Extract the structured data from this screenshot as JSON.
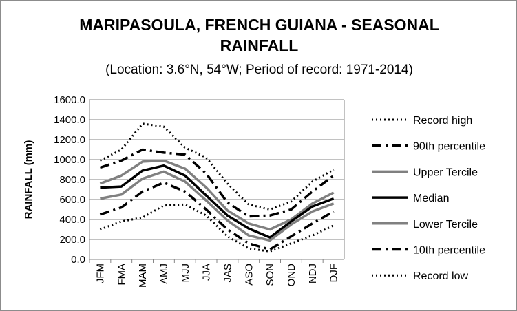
{
  "chart_data": {
    "type": "line",
    "title_line1": "MARIPASOULA, FRENCH GUIANA - SEASONAL",
    "title_line2": "RAINFALL",
    "subtitle": "(Location: 3.6°N, 54°W; Period of record: 1971-2014)",
    "xlabel": "",
    "ylabel": "RAINFALL (mm)",
    "ylim": [
      0,
      1600
    ],
    "yticks": [
      "0.0",
      "200.0",
      "400.0",
      "600.0",
      "800.0",
      "1000.0",
      "1200.0",
      "1400.0",
      "1600.0"
    ],
    "categories": [
      "JFM",
      "FMA",
      "MAM",
      "AMJ",
      "MJJ",
      "JJA",
      "JAS",
      "ASO",
      "SON",
      "OND",
      "NDJ",
      "DJF"
    ],
    "grid": true,
    "legend_position": "right",
    "series": [
      {
        "name": "Record high",
        "style": "dotted",
        "color": "#000000",
        "values": [
          990,
          1100,
          1360,
          1330,
          1120,
          1020,
          760,
          550,
          500,
          580,
          780,
          900
        ]
      },
      {
        "name": "90th percentile",
        "style": "dashdot",
        "color": "#000000",
        "values": [
          920,
          990,
          1100,
          1070,
          1050,
          860,
          570,
          430,
          440,
          500,
          680,
          840
        ]
      },
      {
        "name": "Upper Tercile",
        "style": "solid",
        "color": "#808080",
        "values": [
          760,
          840,
          980,
          990,
          910,
          720,
          490,
          360,
          300,
          400,
          560,
          670
        ]
      },
      {
        "name": "Median",
        "style": "solid",
        "color": "#000000",
        "values": [
          720,
          730,
          890,
          940,
          840,
          640,
          440,
          310,
          220,
          380,
          530,
          610
        ]
      },
      {
        "name": "Lower Tercile",
        "style": "solid",
        "color": "#808080",
        "values": [
          610,
          650,
          810,
          880,
          780,
          590,
          390,
          240,
          190,
          350,
          480,
          560
        ]
      },
      {
        "name": "10th percentile",
        "style": "dashdot",
        "color": "#000000",
        "values": [
          450,
          520,
          680,
          770,
          680,
          500,
          300,
          160,
          100,
          230,
          360,
          480
        ]
      },
      {
        "name": "Record low",
        "style": "dotted",
        "color": "#000000",
        "values": [
          300,
          380,
          420,
          540,
          550,
          440,
          230,
          110,
          80,
          160,
          240,
          340
        ]
      }
    ]
  }
}
